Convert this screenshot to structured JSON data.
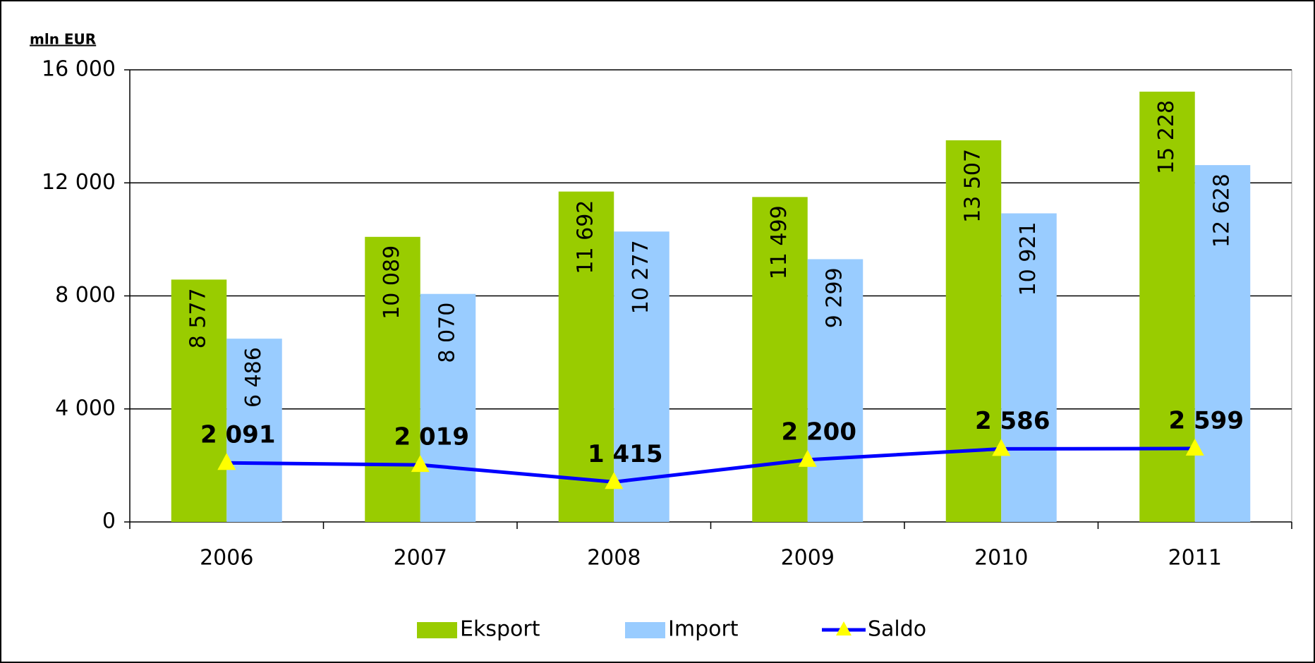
{
  "chart_data": {
    "type": "bar-line",
    "y_axis_label": "mln EUR",
    "categories": [
      "2006",
      "2007",
      "2008",
      "2009",
      "2010",
      "2011"
    ],
    "series": [
      {
        "name": "Eksport",
        "type": "bar",
        "color": "#99cc00",
        "values": [
          8577,
          10089,
          11692,
          11499,
          13507,
          15228
        ],
        "value_labels": [
          "8 577",
          "10 089",
          "11 692",
          "11 499",
          "13 507",
          "15 228"
        ]
      },
      {
        "name": "Import",
        "type": "bar",
        "color": "#99ccff",
        "values": [
          6486,
          8070,
          10277,
          9299,
          10921,
          12628
        ],
        "value_labels": [
          "6 486",
          "8 070",
          "10 277",
          "9 299",
          "10 921",
          "12 628"
        ]
      },
      {
        "name": "Saldo",
        "type": "line",
        "color": "#0000ff",
        "marker_color": "#ffff00",
        "values": [
          2091,
          2019,
          1415,
          2200,
          2586,
          2599
        ],
        "value_labels": [
          "2 091",
          "2 019",
          "1 415",
          "2 200",
          "2 586",
          "2 599"
        ]
      }
    ],
    "ylim": [
      0,
      16000
    ],
    "yticks": [
      0,
      {
        "value": 4000,
        "label": "4 000"
      },
      {
        "value": 8000,
        "label": "8 000"
      },
      {
        "value": 12000,
        "label": "12 000"
      },
      {
        "value": 16000,
        "label": "16 000"
      }
    ],
    "grid": true,
    "legend": "bottom"
  }
}
